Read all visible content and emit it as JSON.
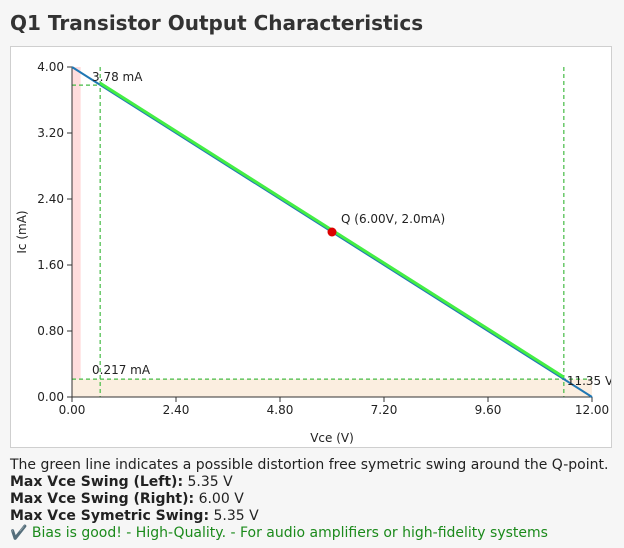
{
  "title": "Q1 Transistor Output Characteristics",
  "chart_data": {
    "type": "line",
    "xlabel": "Vce (V)",
    "ylabel": "Ic (mA)",
    "xlim": [
      0,
      12
    ],
    "ylim": [
      0,
      4
    ],
    "x_ticks": [
      "0.00",
      "2.40",
      "4.80",
      "7.20",
      "9.60",
      "12.00"
    ],
    "y_ticks": [
      "0.00",
      "0.80",
      "1.60",
      "2.40",
      "3.20",
      "4.00"
    ],
    "series": [
      {
        "role": "load-line",
        "color": "#1f77b4",
        "x": [
          0,
          12
        ],
        "y": [
          4.0,
          0.0
        ]
      },
      {
        "role": "symmetric-swing",
        "color": "#44ee44",
        "x": [
          0.65,
          11.35
        ],
        "y": [
          3.78,
          0.217
        ]
      }
    ],
    "q_point": {
      "x": 6.0,
      "y": 2.0,
      "label": "Q (6.00V, 2.0mA)",
      "color": "#dd0000"
    },
    "annotations": {
      "ic_max_label": "3.78 mA",
      "ic_min_label": "0.217 mA",
      "vce_max_label": "11.35 V"
    },
    "guides": {
      "vce_min": 0.65,
      "vce_max": 11.35,
      "ic_max": 3.78,
      "ic_min": 0.217,
      "color": "#44bb44"
    },
    "shaded_regions": [
      {
        "axis": "x",
        "from": 0,
        "to": 0.2,
        "color": "#ffdddd"
      },
      {
        "axis": "y",
        "from": 0,
        "to": 0.217,
        "color": "#fbeee0"
      }
    ],
    "grid": false
  },
  "info": {
    "description": "The green line indicates a possible distortion free symetric swing around the Q-point.",
    "swing_left_label": "Max Vce Swing (Left):",
    "swing_left_value": "5.35 V",
    "swing_right_label": "Max Vce Swing (Right):",
    "swing_right_value": "6.00 V",
    "swing_sym_label": "Max Vce Symetric Swing:",
    "swing_sym_value": "5.35 V",
    "bias_status": "✔️ Bias is good! - High-Quality. - For audio amplifiers or high-fidelity systems"
  }
}
